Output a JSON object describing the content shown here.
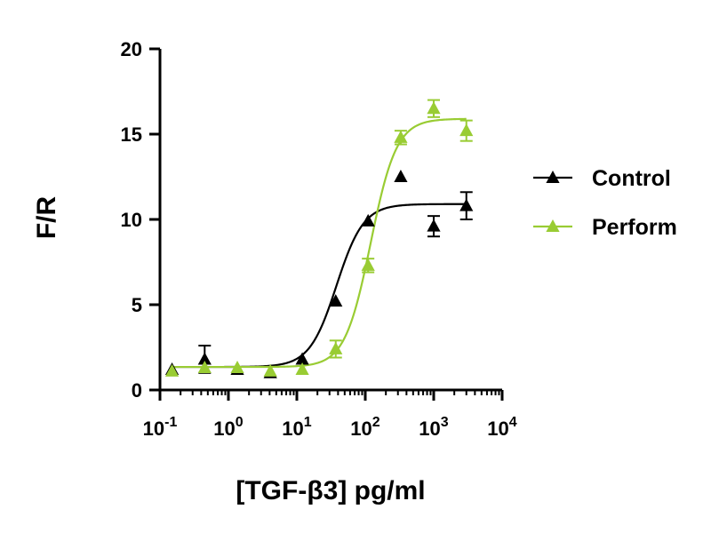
{
  "chart_data": {
    "type": "scatter",
    "title": "",
    "xlabel": "[TGF-β3] pg/ml",
    "ylabel": "F/R",
    "x_scale": "log",
    "xlim": [
      0.1,
      10000
    ],
    "ylim": [
      0,
      20
    ],
    "x_ticks": [
      {
        "value": 0.1,
        "base": "10",
        "exp": "-1"
      },
      {
        "value": 1,
        "base": "10",
        "exp": "0"
      },
      {
        "value": 10,
        "base": "10",
        "exp": "1"
      },
      {
        "value": 100,
        "base": "10",
        "exp": "2"
      },
      {
        "value": 1000,
        "base": "10",
        "exp": "3"
      },
      {
        "value": 10000,
        "base": "10",
        "exp": "4"
      }
    ],
    "y_ticks": [
      0,
      5,
      10,
      15,
      20
    ],
    "grid": false,
    "legend_position": "right",
    "series": [
      {
        "name": "Control",
        "color": "#000000",
        "marker": "triangle",
        "fit": {
          "model": "four-parameter logistic",
          "bottom": 1.35,
          "top": 10.9,
          "ec50": 38,
          "hill": 2.2
        },
        "points": [
          {
            "x": 0.15,
            "y": 1.2,
            "err": 0
          },
          {
            "x": 0.45,
            "y": 1.8,
            "err": 0.8
          },
          {
            "x": 1.35,
            "y": 1.2,
            "err": 0
          },
          {
            "x": 4.1,
            "y": 1.0,
            "err": 0
          },
          {
            "x": 12,
            "y": 1.8,
            "err": 0
          },
          {
            "x": 37,
            "y": 5.2,
            "err": 0
          },
          {
            "x": 110,
            "y": 9.9,
            "err": 0
          },
          {
            "x": 330,
            "y": 12.5,
            "err": 0
          },
          {
            "x": 1000,
            "y": 9.6,
            "err": 0.6
          },
          {
            "x": 3000,
            "y": 10.8,
            "err": 0.8
          }
        ]
      },
      {
        "name": "Perform",
        "color": "#99cc33",
        "marker": "triangle",
        "fit": {
          "model": "four-parameter logistic",
          "bottom": 1.35,
          "top": 15.9,
          "ec50": 120,
          "hill": 2.3
        },
        "points": [
          {
            "x": 0.15,
            "y": 1.1,
            "err": 0
          },
          {
            "x": 0.45,
            "y": 1.3,
            "err": 0
          },
          {
            "x": 1.35,
            "y": 1.3,
            "err": 0
          },
          {
            "x": 4.1,
            "y": 1.1,
            "err": 0
          },
          {
            "x": 12,
            "y": 1.2,
            "err": 0
          },
          {
            "x": 37,
            "y": 2.4,
            "err": 0.5
          },
          {
            "x": 110,
            "y": 7.3,
            "err": 0.4
          },
          {
            "x": 330,
            "y": 14.8,
            "err": 0.4
          },
          {
            "x": 1000,
            "y": 16.5,
            "err": 0.5
          },
          {
            "x": 3000,
            "y": 15.2,
            "err": 0.6
          }
        ]
      }
    ]
  }
}
